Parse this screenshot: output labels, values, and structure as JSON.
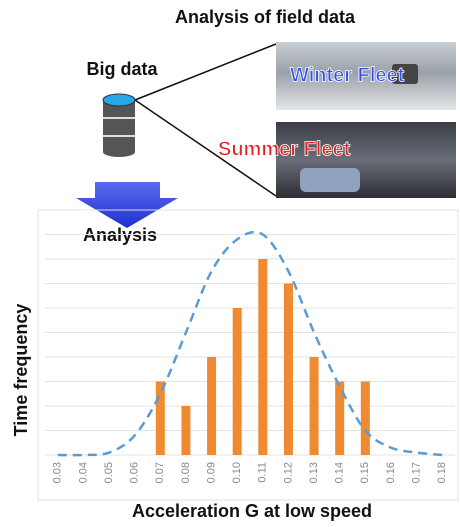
{
  "diagram": {
    "title": "Analysis of field data",
    "source_label": "Big data",
    "photos": [
      "Winter Fleet",
      "Summer Fleet"
    ],
    "arrow_label": "Analysis"
  },
  "chart_data": {
    "type": "bar",
    "x_label": "Acceleration G at low speed",
    "y_label": "Time frequency",
    "categories": [
      "0.03",
      "0.04",
      "0.05",
      "0.06",
      "0.07",
      "0.08",
      "0.09",
      "0.10",
      "0.11",
      "0.12",
      "0.13",
      "0.14",
      "0.15",
      "0.16",
      "0.17",
      "0.18"
    ],
    "series": [
      {
        "type": "bar",
        "color": "#f08a30",
        "values": [
          0,
          0,
          0,
          0,
          3,
          2,
          4,
          6,
          8,
          7,
          4,
          3,
          3,
          0,
          0,
          0
        ]
      },
      {
        "type": "line",
        "color": "#5b9bd5",
        "dashed": true,
        "values": [
          0,
          0,
          0.1,
          0.8,
          2.5,
          5,
          7.5,
          8.8,
          9,
          7.5,
          5,
          2.8,
          1,
          0.3,
          0.1,
          0
        ]
      }
    ],
    "ylim": [
      0,
      9
    ],
    "yticks": [
      0,
      1,
      2,
      3,
      4,
      5,
      6,
      7,
      8,
      9
    ],
    "grid": true
  }
}
